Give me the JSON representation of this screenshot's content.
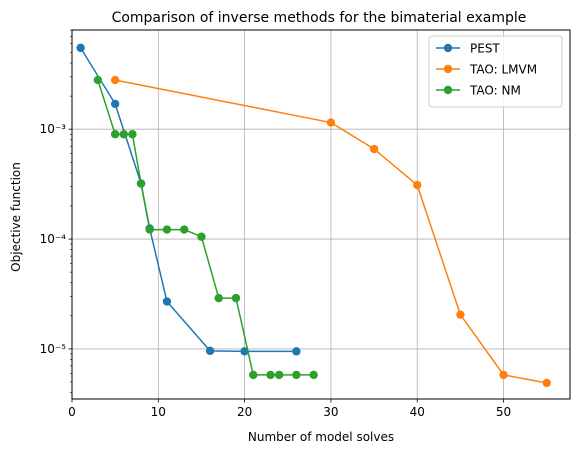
{
  "chart_data": {
    "type": "line",
    "title": "Comparison of inverse methods for the bimaterial example",
    "xlabel": "Number of model solves",
    "ylabel": "Objective function",
    "xlim": [
      0,
      57.7
    ],
    "ylim": [
      3.5e-06,
      0.008
    ],
    "yscale": "log",
    "grid": true,
    "legend_position": "top-right",
    "x_ticks": [
      0,
      10,
      20,
      30,
      40,
      50
    ],
    "y_ticks": [
      {
        "value": 1e-05,
        "label": "10⁻⁵"
      },
      {
        "value": 0.0001,
        "label": "10⁻⁴"
      },
      {
        "value": 0.001,
        "label": "10⁻³"
      }
    ],
    "series": [
      {
        "name": "PEST",
        "color": "#1f77b4",
        "x": [
          1,
          5,
          8,
          9,
          11,
          16,
          20,
          26
        ],
        "y": [
          0.0055,
          0.0017,
          0.00032,
          0.000125,
          2.7e-05,
          9.6e-06,
          9.5e-06,
          9.5e-06
        ]
      },
      {
        "name": "TAO: LMVM",
        "color": "#ff7f0e",
        "x": [
          5,
          30,
          35,
          40,
          45,
          50,
          55
        ],
        "y": [
          0.0028,
          0.00115,
          0.00066,
          0.00031,
          2.05e-05,
          5.8e-06,
          4.9e-06
        ]
      },
      {
        "name": "TAO: NM",
        "color": "#2ca02c",
        "x": [
          3,
          5,
          6,
          7,
          8,
          9,
          11,
          13,
          15,
          17,
          19,
          21,
          23,
          24,
          26,
          28
        ],
        "y": [
          0.0028,
          0.0009,
          0.0009,
          0.0009,
          0.00032,
          0.000122,
          0.000122,
          0.000122,
          0.000105,
          2.9e-05,
          2.9e-05,
          5.8e-06,
          5.8e-06,
          5.8e-06,
          5.8e-06,
          5.8e-06
        ]
      }
    ]
  }
}
